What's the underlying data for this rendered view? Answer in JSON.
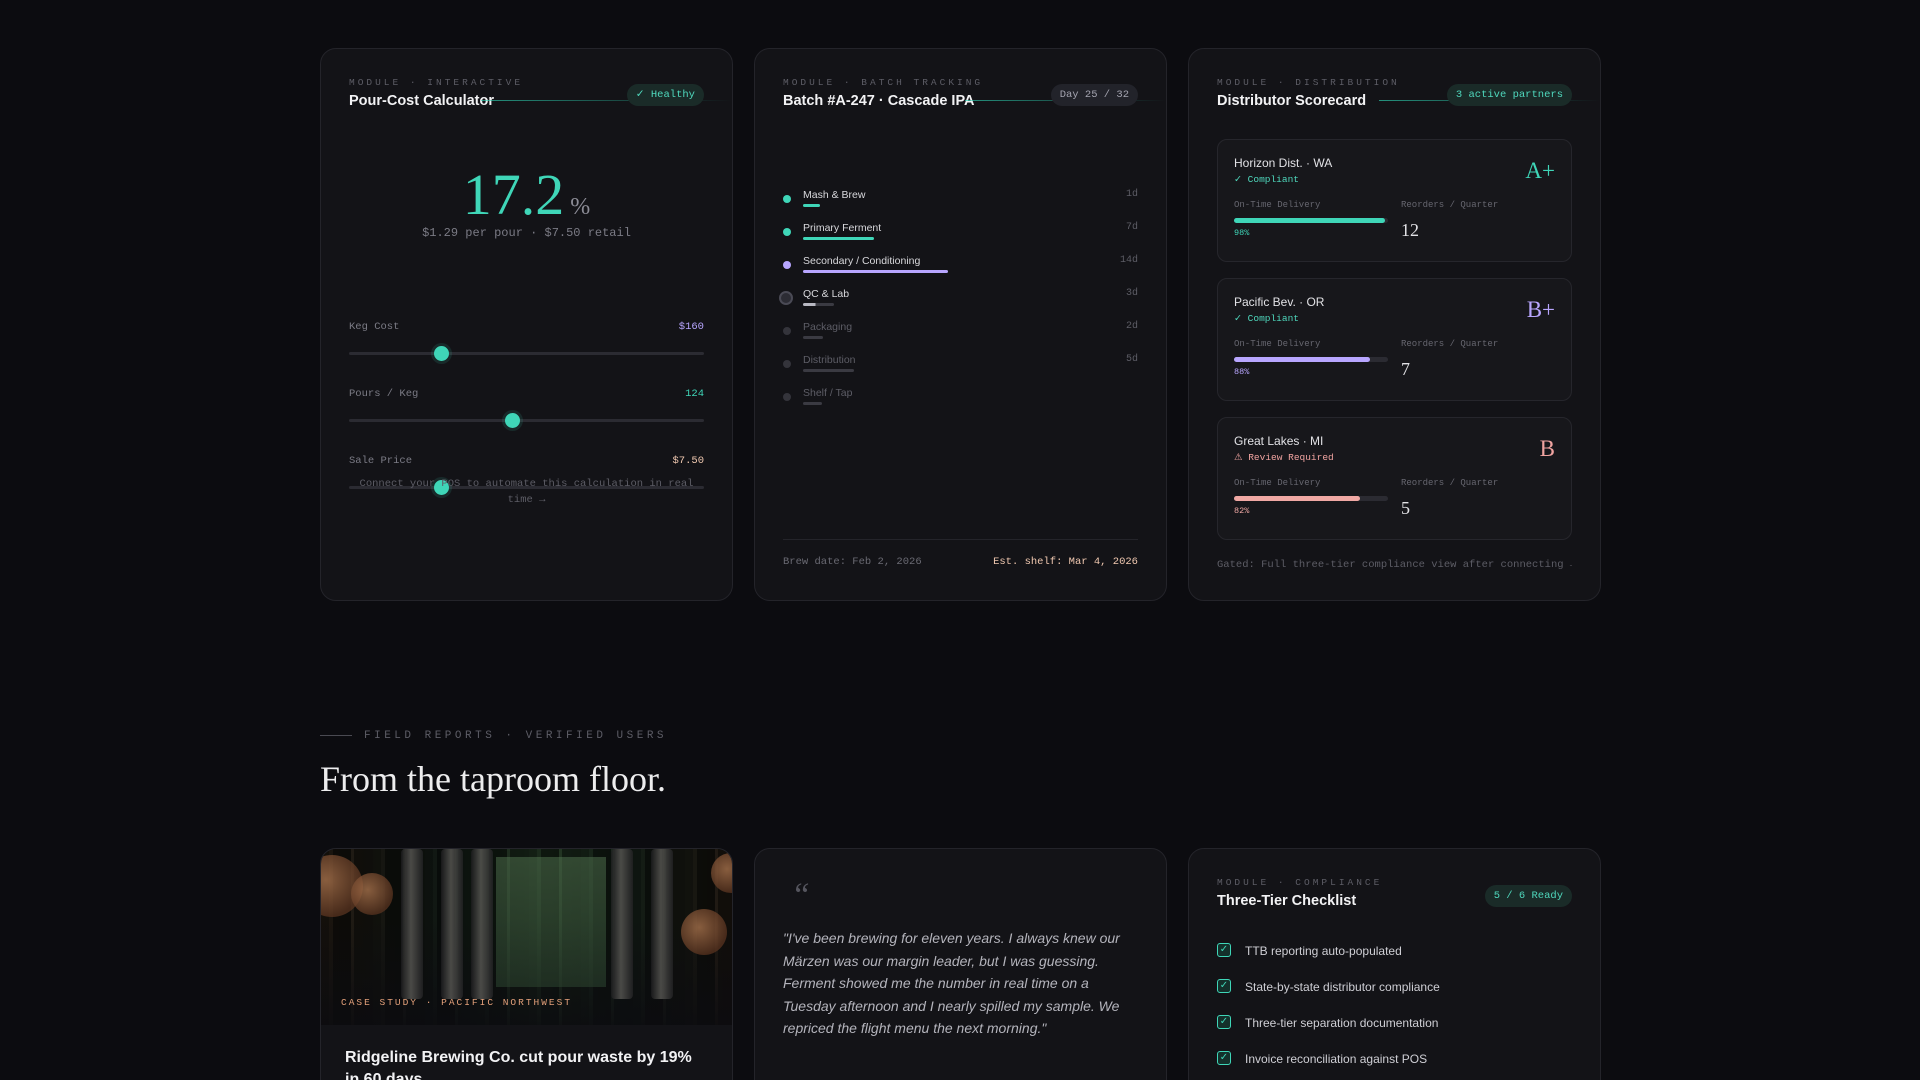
{
  "calculator": {
    "eyebrow": "MODULE · INTERACTIVE",
    "title": "Pour-Cost Calculator",
    "badge": "✓ Healthy",
    "value": "17.2",
    "unit": "%",
    "subline": "$1.29 per pour · $7.50 retail",
    "sliders": [
      {
        "label": "Keg Cost",
        "value": "$160",
        "level": 0.26,
        "color": "#b8a6ff"
      },
      {
        "label": "Pours / Keg",
        "value": "124",
        "level": 0.46,
        "color": "#3fd6b8"
      },
      {
        "label": "Sale Price",
        "value": "$7.50",
        "level": 0.26,
        "color": "#f0c8b0"
      }
    ],
    "footnote": "Connect your POS to automate this calculation in real time →"
  },
  "batch": {
    "eyebrow": "MODULE · BATCH TRACKING",
    "title": "Batch #A-247 · Cascade IPA",
    "badge": "Day 25 / 32",
    "stages": [
      {
        "name": "Mash & Brew",
        "duration": "1d",
        "state": "done",
        "color": "#3fd6b8",
        "progress": 0.1
      },
      {
        "name": "Primary Ferment",
        "duration": "7d",
        "state": "done",
        "color": "#3fd6b8",
        "progress": 0.42
      },
      {
        "name": "Secondary / Conditioning",
        "duration": "14d",
        "state": "done",
        "color": "#b8a6ff",
        "progress": 0.85
      },
      {
        "name": "QC & Lab",
        "duration": "3d",
        "state": "active",
        "color": "#9a9aa5",
        "progress": 0.18
      },
      {
        "name": "Packaging",
        "duration": "2d",
        "state": "pending",
        "color": "#3a3a42",
        "progress": 0.12
      },
      {
        "name": "Distribution",
        "duration": "5d",
        "state": "pending",
        "color": "#3a3a42",
        "progress": 0.3
      },
      {
        "name": "Shelf / Tap",
        "duration": "",
        "state": "pending",
        "color": "#3a3a42",
        "progress": 0.11
      }
    ],
    "brew_date": "Brew date: Feb 2, 2026",
    "est_shelf": "Est. shelf: Mar 4, 2026"
  },
  "distributors": {
    "eyebrow": "MODULE · DISTRIBUTION",
    "title": "Distributor Scorecard",
    "badge": "3 active partners",
    "delivery_label": "On-Time Delivery",
    "reorders_label": "Reorders / Quarter",
    "items": [
      {
        "name": "Horizon Dist. · WA",
        "status": "✓ Compliant",
        "status_color": "#4fd8bd",
        "grade": "A+",
        "grade_color": "#3fd6b8",
        "delivery": "98%",
        "delivery_level": 0.98,
        "bar_color": "#3fd6b8",
        "reorders": "12"
      },
      {
        "name": "Pacific Bev. · OR",
        "status": "✓ Compliant",
        "status_color": "#4fd8bd",
        "grade": "B+",
        "grade_color": "#b8a6ff",
        "delivery": "88%",
        "delivery_level": 0.88,
        "bar_color": "#b8a6ff",
        "reorders": "7"
      },
      {
        "name": "Great Lakes · MI",
        "status": "⚠ Review Required",
        "status_color": "#f0a3a0",
        "grade": "B",
        "grade_color": "#f0a3a0",
        "delivery": "82%",
        "delivery_level": 0.82,
        "bar_color": "#f0a8a4",
        "reorders": "5"
      }
    ],
    "gated": "Gated: Full three-tier compliance view after connecting →"
  },
  "section": {
    "eyebrow": "FIELD REPORTS · VERIFIED USERS",
    "title": "From the taproom floor."
  },
  "case_study": {
    "tag": "CASE STUDY · PACIFIC NORTHWEST",
    "title": "Ridgeline Brewing Co. cut pour waste by 19% in 60 days"
  },
  "quote": {
    "mark": "“",
    "text": "\"I've been brewing for eleven years. I always knew our Märzen was our margin leader, but I was guessing. Ferment showed me the number in real time on a Tuesday afternoon and I nearly spilled my sample. We repriced the flight menu the next morning.\""
  },
  "checklist": {
    "eyebrow": "MODULE · COMPLIANCE",
    "title": "Three-Tier Checklist",
    "badge": "5 / 6 Ready",
    "items": [
      "TTB reporting auto-populated",
      "State-by-state distributor compliance",
      "Three-tier separation documentation",
      "Invoice reconciliation against POS"
    ]
  }
}
